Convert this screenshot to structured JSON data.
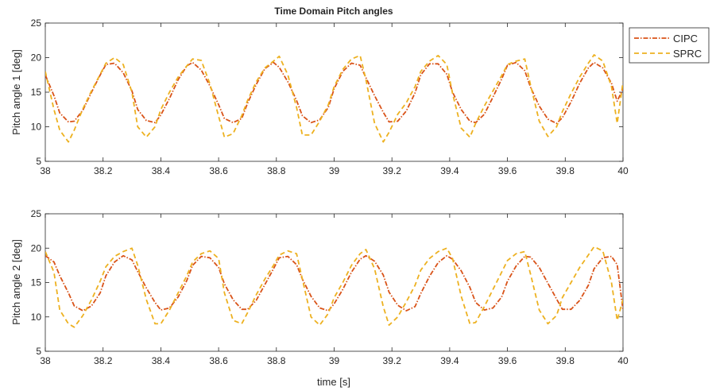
{
  "figure_title": "Time Domain Pitch angles",
  "xlabel": "time [s]",
  "legend": {
    "entries": [
      "CIPC",
      "SPRC"
    ],
    "placement": "right-of-top-plot"
  },
  "colors": {
    "CIPC": "#d95319",
    "SPRC": "#edb120",
    "axis": "#262626",
    "grid": "#e0e0e0"
  },
  "chart_data": [
    {
      "type": "line",
      "title": "Time Domain Pitch angles",
      "xlabel": "",
      "ylabel": "Pitch angle 1 [deg]",
      "xlim": [
        38,
        40
      ],
      "ylim": [
        5,
        25
      ],
      "xticks": [
        38,
        38.2,
        38.4,
        38.6,
        38.8,
        39,
        39.2,
        39.4,
        39.6,
        39.8,
        40
      ],
      "xtick_labels": [
        "38",
        "38.2",
        "38.4",
        "38.6",
        "38.8",
        "39",
        "39.2",
        "39.4",
        "39.6",
        "39.8",
        "40"
      ],
      "yticks": [
        5,
        10,
        15,
        20,
        25
      ],
      "ytick_labels": [
        "5",
        "10",
        "15",
        "20",
        "25"
      ],
      "grid": false,
      "series": [
        {
          "name": "CIPC",
          "style": "dash-dot",
          "x": [
            38.0,
            38.03,
            38.05,
            38.08,
            38.1,
            38.13,
            38.16,
            38.19,
            38.21,
            38.24,
            38.27,
            38.3,
            38.32,
            38.35,
            38.38,
            38.4,
            38.43,
            38.46,
            38.49,
            38.51,
            38.54,
            38.57,
            38.6,
            38.62,
            38.65,
            38.68,
            38.7,
            38.73,
            38.76,
            38.79,
            38.81,
            38.84,
            38.87,
            38.89,
            38.92,
            38.95,
            38.98,
            39.0,
            39.03,
            39.06,
            39.09,
            39.11,
            39.14,
            39.17,
            39.19,
            39.22,
            39.25,
            39.28,
            39.3,
            39.33,
            39.36,
            39.39,
            39.41,
            39.44,
            39.47,
            39.49,
            39.52,
            39.55,
            39.58,
            39.6,
            39.63,
            39.66,
            39.68,
            39.71,
            39.74,
            39.77,
            39.79,
            39.82,
            39.85,
            39.88,
            39.9,
            39.93,
            39.96,
            39.98,
            40.0
          ],
          "y": [
            17.5,
            14.5,
            12.0,
            10.7,
            10.8,
            12.4,
            15.0,
            17.5,
            19.0,
            19.2,
            17.8,
            15.2,
            12.5,
            10.9,
            10.6,
            11.7,
            14.1,
            16.8,
            18.8,
            19.3,
            18.2,
            15.9,
            13.2,
            11.2,
            10.6,
            11.2,
            13.4,
            16.1,
            18.4,
            19.3,
            18.6,
            16.5,
            13.8,
            11.6,
            10.6,
            11.0,
            12.8,
            15.5,
            18.0,
            19.2,
            18.9,
            17.1,
            14.5,
            12.1,
            10.7,
            10.8,
            12.3,
            14.9,
            17.5,
            19.1,
            19.1,
            17.6,
            15.0,
            12.5,
            10.8,
            10.6,
            11.8,
            14.3,
            16.9,
            18.9,
            19.3,
            18.1,
            15.7,
            13.0,
            11.1,
            10.5,
            11.3,
            13.6,
            16.3,
            18.5,
            19.3,
            18.5,
            16.3,
            13.7,
            15.5
          ]
        },
        {
          "name": "SPRC",
          "style": "dashed",
          "x": [
            38.0,
            38.03,
            38.05,
            38.08,
            38.1,
            38.13,
            38.16,
            38.19,
            38.21,
            38.24,
            38.27,
            38.3,
            38.32,
            38.35,
            38.38,
            38.4,
            38.43,
            38.46,
            38.49,
            38.51,
            38.54,
            38.57,
            38.6,
            38.62,
            38.65,
            38.68,
            38.7,
            38.73,
            38.76,
            38.79,
            38.81,
            38.84,
            38.87,
            38.89,
            38.92,
            38.95,
            38.98,
            39.0,
            39.03,
            39.06,
            39.09,
            39.11,
            39.14,
            39.17,
            39.19,
            39.22,
            39.25,
            39.28,
            39.3,
            39.33,
            39.36,
            39.39,
            39.41,
            39.44,
            39.47,
            39.49,
            39.52,
            39.55,
            39.58,
            39.6,
            39.63,
            39.66,
            39.68,
            39.71,
            39.74,
            39.77,
            39.79,
            39.82,
            39.85,
            39.88,
            39.9,
            39.93,
            39.96,
            39.98,
            40.0
          ],
          "y": [
            18.0,
            12.5,
            9.5,
            7.8,
            9.5,
            12.6,
            15.2,
            17.6,
            19.2,
            20.0,
            19.0,
            15.0,
            10.0,
            8.5,
            10.0,
            12.5,
            15.0,
            17.2,
            18.8,
            19.8,
            19.6,
            16.2,
            11.5,
            8.5,
            9.0,
            11.6,
            13.8,
            16.5,
            18.5,
            19.5,
            20.2,
            17.5,
            12.8,
            8.8,
            8.8,
            10.8,
            13.2,
            15.8,
            18.3,
            19.8,
            20.3,
            16.8,
            10.5,
            7.8,
            9.2,
            11.8,
            13.5,
            15.8,
            18.0,
            19.5,
            20.3,
            19.0,
            14.8,
            9.8,
            8.5,
            10.5,
            13.0,
            15.2,
            17.4,
            19.0,
            19.5,
            19.8,
            16.0,
            10.8,
            8.6,
            10.0,
            12.2,
            14.8,
            17.2,
            19.2,
            20.4,
            19.5,
            15.8,
            10.5,
            16.5
          ]
        }
      ]
    },
    {
      "type": "line",
      "title": "",
      "xlabel": "time [s]",
      "ylabel": "Pitch angle 2 [deg]",
      "xlim": [
        38,
        40
      ],
      "ylim": [
        5,
        25
      ],
      "xticks": [
        38,
        38.2,
        38.4,
        38.6,
        38.8,
        39,
        39.2,
        39.4,
        39.6,
        39.8,
        40
      ],
      "xtick_labels": [
        "38",
        "38.2",
        "38.4",
        "38.6",
        "38.8",
        "39",
        "39.2",
        "39.4",
        "39.6",
        "39.8",
        "40"
      ],
      "yticks": [
        5,
        10,
        15,
        20,
        25
      ],
      "ytick_labels": [
        "5",
        "10",
        "15",
        "20",
        "25"
      ],
      "grid": false,
      "series": [
        {
          "name": "CIPC",
          "style": "dash-dot",
          "x": [
            38.0,
            38.03,
            38.05,
            38.08,
            38.1,
            38.13,
            38.16,
            38.19,
            38.21,
            38.24,
            38.27,
            38.3,
            38.32,
            38.35,
            38.38,
            38.4,
            38.43,
            38.46,
            38.49,
            38.51,
            38.54,
            38.57,
            38.6,
            38.62,
            38.65,
            38.68,
            38.7,
            38.73,
            38.76,
            38.79,
            38.81,
            38.84,
            38.87,
            38.89,
            38.92,
            38.95,
            38.98,
            39.0,
            39.03,
            39.06,
            39.09,
            39.11,
            39.14,
            39.17,
            39.19,
            39.22,
            39.25,
            39.28,
            39.3,
            39.33,
            39.36,
            39.39,
            39.41,
            39.44,
            39.47,
            39.49,
            39.52,
            39.55,
            39.58,
            39.6,
            39.63,
            39.66,
            39.68,
            39.71,
            39.74,
            39.77,
            39.79,
            39.82,
            39.85,
            39.88,
            39.9,
            39.93,
            39.96,
            39.98,
            40.0
          ],
          "y": [
            18.9,
            18.0,
            16.0,
            13.5,
            11.6,
            10.9,
            11.6,
            13.5,
            16.0,
            18.0,
            18.9,
            18.3,
            16.6,
            14.2,
            12.1,
            11.0,
            11.3,
            12.9,
            15.3,
            17.5,
            18.8,
            18.6,
            17.2,
            14.8,
            12.5,
            11.1,
            11.1,
            12.4,
            14.7,
            17.0,
            18.6,
            18.8,
            17.6,
            15.5,
            13.0,
            11.3,
            10.9,
            11.9,
            14.0,
            16.5,
            18.4,
            18.9,
            18.1,
            16.1,
            13.6,
            11.7,
            10.9,
            11.5,
            13.4,
            15.9,
            17.9,
            18.9,
            18.4,
            16.7,
            14.3,
            12.1,
            11.0,
            11.3,
            12.9,
            15.2,
            17.4,
            18.8,
            18.7,
            17.2,
            14.9,
            12.6,
            11.1,
            11.1,
            12.4,
            14.6,
            17.0,
            18.6,
            18.8,
            17.6,
            11.0
          ]
        },
        {
          "name": "SPRC",
          "style": "dashed",
          "x": [
            38.0,
            38.03,
            38.05,
            38.08,
            38.1,
            38.13,
            38.16,
            38.19,
            38.21,
            38.24,
            38.27,
            38.3,
            38.32,
            38.35,
            38.38,
            38.4,
            38.43,
            38.46,
            38.49,
            38.51,
            38.54,
            38.57,
            38.6,
            38.62,
            38.65,
            38.68,
            38.7,
            38.73,
            38.76,
            38.79,
            38.81,
            38.84,
            38.87,
            38.89,
            38.92,
            38.95,
            38.98,
            39.0,
            39.03,
            39.06,
            39.09,
            39.11,
            39.14,
            39.17,
            39.19,
            39.22,
            39.25,
            39.28,
            39.3,
            39.33,
            39.36,
            39.39,
            39.41,
            39.44,
            39.47,
            39.49,
            39.52,
            39.55,
            39.58,
            39.6,
            39.63,
            39.66,
            39.68,
            39.71,
            39.74,
            39.77,
            39.79,
            39.82,
            39.85,
            39.88,
            39.9,
            39.93,
            39.96,
            39.98,
            40.0
          ],
          "y": [
            19.5,
            16.5,
            11.0,
            9.0,
            8.5,
            10.2,
            12.5,
            15.2,
            17.3,
            18.8,
            19.5,
            20.0,
            17.5,
            12.5,
            9.0,
            9.0,
            11.0,
            13.5,
            16.0,
            18.0,
            19.2,
            19.6,
            18.5,
            13.5,
            9.5,
            9.0,
            10.6,
            13.2,
            15.5,
            17.5,
            19.0,
            19.6,
            19.2,
            15.5,
            10.0,
            8.8,
            10.5,
            12.8,
            15.0,
            17.5,
            19.2,
            19.8,
            17.0,
            11.5,
            8.8,
            10.0,
            12.2,
            14.6,
            16.8,
            18.5,
            19.5,
            20.0,
            18.5,
            13.0,
            9.0,
            9.2,
            11.5,
            14.0,
            16.5,
            18.2,
            19.2,
            19.5,
            16.2,
            11.0,
            9.0,
            10.2,
            12.8,
            15.0,
            17.2,
            19.0,
            20.2,
            19.6,
            15.0,
            9.5,
            12.5
          ]
        }
      ]
    }
  ]
}
